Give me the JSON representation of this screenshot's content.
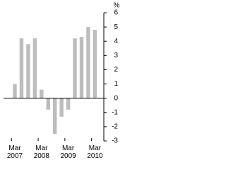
{
  "chart_data": {
    "type": "bar",
    "unit": "%",
    "categories": [
      "Mar 2007",
      null,
      null,
      null,
      "Mar 2008",
      null,
      null,
      null,
      "Mar 2009",
      null,
      null,
      null,
      "Mar 2010"
    ],
    "values": [
      1.0,
      4.2,
      3.8,
      4.2,
      0.6,
      -0.8,
      -2.5,
      -1.3,
      -0.8,
      4.2,
      4.3,
      5.0,
      4.8
    ],
    "color": "#bdbdbd",
    "ylim": [
      -3,
      6
    ],
    "yticks": [
      -3,
      -2,
      -1,
      0,
      1,
      2,
      3,
      4,
      5,
      6
    ]
  }
}
